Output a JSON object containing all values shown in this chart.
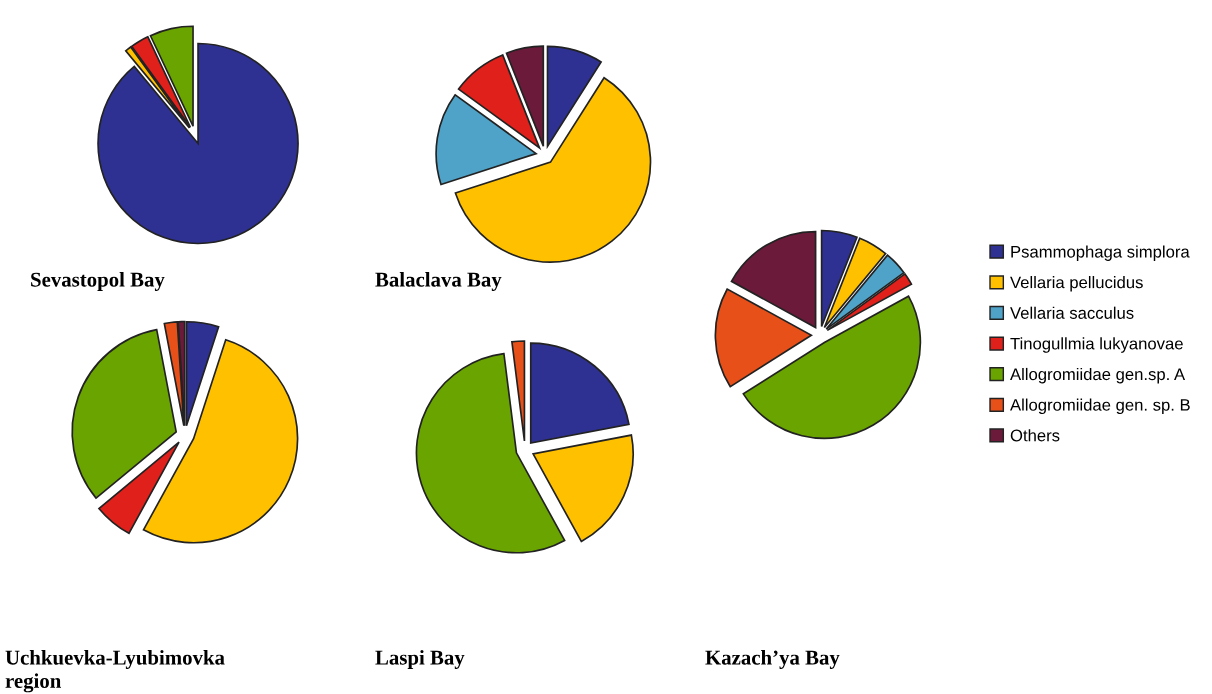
{
  "chart_data": [
    {
      "type": "pie",
      "title": "Sevastopol Bay",
      "categories": [
        null,
        null,
        null,
        null
      ],
      "values": [
        89,
        1,
        3,
        7
      ],
      "colors": [
        "#2e3192",
        "#ffc000",
        "#e0201a",
        "#6aa400"
      ]
    },
    {
      "type": "pie",
      "title": "Balaclava Bay",
      "categories": [
        null,
        null,
        null,
        null,
        null
      ],
      "values": [
        9,
        61,
        15,
        9,
        6
      ],
      "colors": [
        "#2e3192",
        "#ffc000",
        "#4fa3c8",
        "#e0201a",
        "#6b1a3a"
      ]
    },
    {
      "type": "pie",
      "title": "Uchkuevka-Lyubimovka\nregion",
      "categories": [
        null,
        null,
        null,
        null,
        null,
        null
      ],
      "values": [
        5,
        53,
        6,
        33,
        2,
        1
      ],
      "colors": [
        "#2e3192",
        "#ffc000",
        "#e0201a",
        "#6aa400",
        "#e8501a",
        "#6b1a3a"
      ]
    },
    {
      "type": "pie",
      "title": "Laspi Bay",
      "categories": [
        null,
        null,
        null,
        null
      ],
      "values": [
        22,
        20,
        56,
        2
      ],
      "colors": [
        "#2e3192",
        "#ffc000",
        "#6aa400",
        "#e8501a"
      ]
    },
    {
      "type": "pie",
      "title": "Kazach’ya Bay",
      "categories": [
        "Psammophaga simplora",
        "Vellaria pellucidus",
        "Vellaria sacculus",
        "Tinogullmia lukyanovae",
        "Allogromiidae gen.sp. A",
        "Allogromiidae gen. sp. B",
        "Others"
      ],
      "values": [
        6,
        5,
        4,
        2,
        49,
        17,
        17
      ],
      "colors": [
        "#2e3192",
        "#ffc000",
        "#4fa3c8",
        "#e0201a",
        "#6aa400",
        "#e8501a",
        "#6b1a3a"
      ],
      "legend": "right"
    }
  ]
}
